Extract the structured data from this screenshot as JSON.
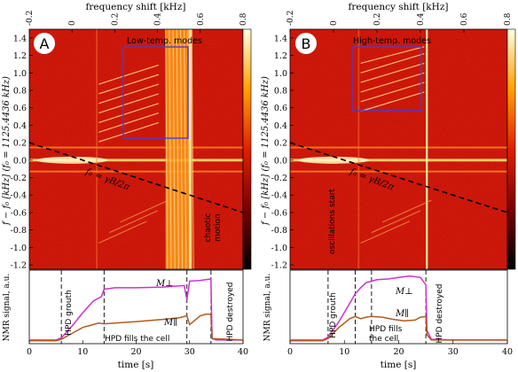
{
  "chart_data": [
    {
      "type": "heatmap",
      "panel_label": "A",
      "title": "frequency shift [kHz]",
      "top_axis": {
        "range": [
          -0.2,
          0.8
        ],
        "ticks": [
          "-0.2",
          "0",
          "0.2",
          "0.4",
          "0.6",
          "0.8"
        ]
      },
      "ylabel": "f − f₀ [kHz] (f₀ = 1125.4436 kHz)",
      "y_range": [
        -1.25,
        1.5
      ],
      "y_ticks": [
        "1.4",
        "1.2",
        "1.0",
        "0.8",
        "0.6",
        "0.4",
        "0.2",
        "0.0",
        "-0.2",
        "-0.4",
        "-0.6",
        "-0.8",
        "-1.0",
        "-1.2"
      ],
      "x_range_s": [
        0,
        40
      ],
      "box_label": "Low-temp. modes",
      "box_time_s": [
        12.5,
        24.5
      ],
      "box_freq": [
        0.15,
        1.3
      ],
      "chaotic_region_s": [
        25.5,
        30.5
      ],
      "chaotic_label": [
        "chaotic",
        "motion"
      ],
      "line_label": "f₀ = γB/2π",
      "dashed_line_endpoints": [
        [
          0,
          0.2
        ],
        [
          40,
          -0.6
        ]
      ],
      "colorbar_ticks": [
        "0.0",
        "0.2",
        "0.4",
        "0.6",
        "0.8",
        "1.0",
        "1.2",
        "1.4"
      ]
    },
    {
      "type": "heatmap",
      "panel_label": "B",
      "title": "frequency shift [kHz]",
      "top_axis": {
        "range": [
          -0.2,
          0.8
        ],
        "ticks": [
          "-0.2",
          "0",
          "0.2",
          "0.4",
          "0.6",
          "0.8"
        ]
      },
      "ylabel": "f − f₀ [kHz] (f₀ = 1125.4436 kHz)",
      "y_range": [
        -1.25,
        1.5
      ],
      "y_ticks": [
        "1.4",
        "1.2",
        "1.0",
        "0.8",
        "0.6",
        "0.4",
        "0.2",
        "0.0",
        "-0.2",
        "-0.4",
        "-0.6",
        "-0.8",
        "-1.0",
        "-1.2"
      ],
      "x_range_s": [
        0,
        40
      ],
      "box_label": "High-temp. modes",
      "box_time_s": [
        12.5,
        25
      ],
      "box_freq": [
        0.5,
        1.3
      ],
      "vline_s": 25,
      "oscillations_label": "oscillations start",
      "line_label": "f₀ = γB/2π",
      "dashed_line_endpoints": [
        [
          0,
          0.2
        ],
        [
          40,
          -0.6
        ]
      ],
      "colorbar_ticks": [
        "0.0",
        "0.2",
        "0.4",
        "0.6",
        "0.8",
        "1.0",
        "1.2",
        "1.4"
      ]
    },
    {
      "type": "line",
      "panel_label": "A-bottom",
      "xlabel": "time [s]",
      "ylabel": "NMR signal, a.u.",
      "xlim": [
        0,
        40
      ],
      "x_ticks": [
        "0",
        "10",
        "20",
        "30",
        "40"
      ],
      "ylim": [
        0,
        1
      ],
      "vlines_s": [
        6,
        14,
        29.5,
        34
      ],
      "annotations": [
        "HPD grouth",
        "HPD fills the cell",
        "HPD destroyed"
      ],
      "series": [
        {
          "name": "M⊥",
          "color": "#cc33cc",
          "x": [
            0,
            5,
            6,
            8,
            10,
            12,
            13.5,
            14,
            16,
            20,
            25,
            29,
            29.5,
            30,
            32,
            34,
            34.2,
            35,
            40
          ],
          "y": [
            0.05,
            0.05,
            0.08,
            0.24,
            0.42,
            0.58,
            0.64,
            0.74,
            0.76,
            0.76,
            0.77,
            0.79,
            0.6,
            0.85,
            0.86,
            0.88,
            0.07,
            0.05,
            0.05
          ]
        },
        {
          "name": "M∥",
          "color": "#b35a1a",
          "x": [
            0,
            5,
            6,
            8,
            10,
            12,
            13,
            14,
            16,
            20,
            25,
            28,
            29.5,
            30,
            32,
            33,
            34,
            34.2,
            40
          ],
          "y": [
            0.04,
            0.04,
            0.06,
            0.14,
            0.22,
            0.26,
            0.28,
            0.27,
            0.28,
            0.3,
            0.33,
            0.35,
            0.38,
            0.26,
            0.38,
            0.4,
            0.4,
            0.07,
            0.05
          ]
        }
      ]
    },
    {
      "type": "line",
      "panel_label": "B-bottom",
      "xlabel": "time [s]",
      "ylabel": "NMR signal, a.u.",
      "xlim": [
        0,
        40
      ],
      "x_ticks": [
        "0",
        "10",
        "20",
        "30",
        "40"
      ],
      "ylim": [
        0,
        1
      ],
      "vlines_s": [
        7,
        12,
        15,
        25
      ],
      "annotations": [
        "HPD grouth",
        "HPD fills",
        "the cell",
        "HPD destroyed"
      ],
      "series": [
        {
          "name": "M⊥",
          "color": "#cc33cc",
          "x": [
            0,
            6,
            7,
            9,
            11,
            12,
            13,
            14,
            16,
            18,
            20,
            22,
            24,
            25,
            25.2,
            26,
            30,
            40
          ],
          "y": [
            0.05,
            0.05,
            0.09,
            0.3,
            0.55,
            0.68,
            0.76,
            0.83,
            0.87,
            0.88,
            0.9,
            0.92,
            0.9,
            0.8,
            0.18,
            0.06,
            0.05,
            0.05
          ]
        },
        {
          "name": "M∥",
          "color": "#b35a1a",
          "x": [
            0,
            6,
            7,
            9,
            11,
            12,
            13,
            14,
            15,
            17,
            19,
            21,
            23,
            24,
            25,
            25.2,
            26,
            40
          ],
          "y": [
            0.04,
            0.04,
            0.07,
            0.22,
            0.34,
            0.37,
            0.34,
            0.36,
            0.37,
            0.36,
            0.33,
            0.31,
            0.32,
            0.36,
            0.37,
            0.12,
            0.05,
            0.05
          ]
        }
      ]
    }
  ]
}
